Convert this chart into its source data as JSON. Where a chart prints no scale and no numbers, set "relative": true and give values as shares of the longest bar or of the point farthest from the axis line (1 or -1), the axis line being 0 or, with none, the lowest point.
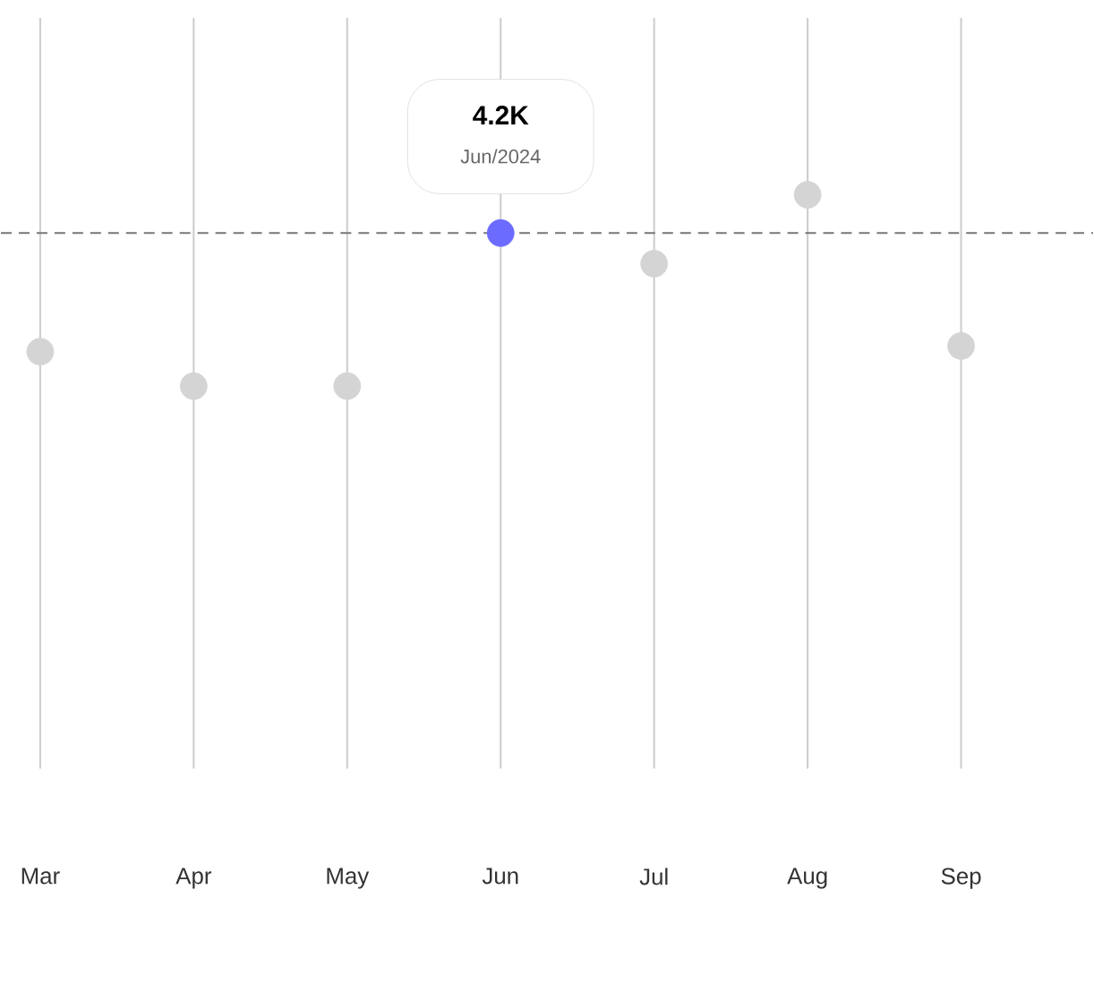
{
  "chart_data": {
    "type": "scatter",
    "relative": true,
    "categories": [
      "Mar",
      "Apr",
      "May",
      "Jun",
      "Jul",
      "Aug",
      "Sep"
    ],
    "values": [
      0.18,
      0,
      0,
      0.8,
      0.64,
      1,
      0.21
    ],
    "colors": [
      "#d4d4d4",
      "#d4d4d4",
      "#d4d4d4",
      "#6b6bff",
      "#d4d4d4",
      "#d4d4d4",
      "#d4d4d4"
    ],
    "marker": "circle",
    "grid": "x",
    "ref_lines": [
      {
        "axis": "y",
        "value": 0.8,
        "color": "#777777",
        "line_style": "dashed"
      }
    ],
    "annotations": [
      "4.2K",
      "Jun/2024"
    ]
  }
}
